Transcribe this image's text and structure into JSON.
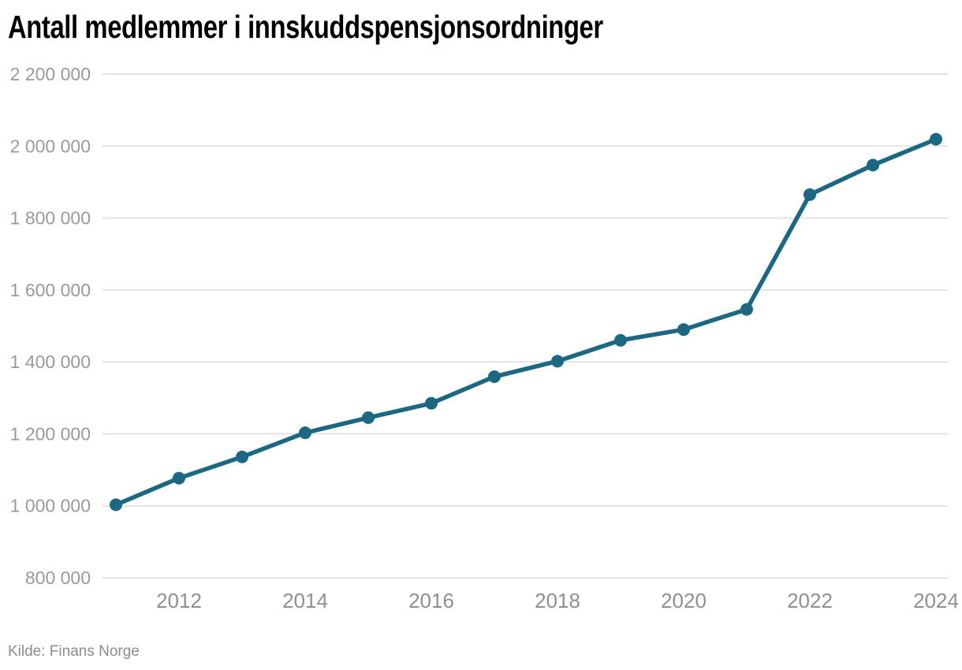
{
  "header": {
    "title": "Antall medlemmer i innskuddspensjonsordninger"
  },
  "footer": {
    "source": "Kilde: Finans Norge"
  },
  "chart_data": {
    "type": "line",
    "title": "Antall medlemmer i innskuddspensjonsordninger",
    "xlabel": "",
    "ylabel": "",
    "x": [
      2011,
      2012,
      2013,
      2014,
      2015,
      2016,
      2017,
      2018,
      2019,
      2020,
      2021,
      2022,
      2023,
      2024
    ],
    "series": [
      {
        "name": "Antall medlemmer",
        "values": [
          1003000,
          1077000,
          1136000,
          1203000,
          1245000,
          1285000,
          1359000,
          1402000,
          1460000,
          1490000,
          1546000,
          1865000,
          1947000,
          2019000
        ]
      }
    ],
    "xticks": [
      2012,
      2014,
      2016,
      2018,
      2020,
      2022,
      2024
    ],
    "ylim": [
      800000,
      2200000
    ],
    "ytick_step": 200000,
    "ytick_labels": [
      "800 000",
      "1 000 000",
      "1 200 000",
      "1 400 000",
      "1 600 000",
      "1 800 000",
      "2 000 000",
      "2 200 000"
    ],
    "grid": true,
    "legend_position": "none",
    "colors": {
      "line": "#1c6883",
      "marker": "#1c6883",
      "gridline": "#e4e4e4",
      "y_tick_label": "#9a9a9a",
      "x_tick_label": "#8f8f8f",
      "title": "#000000",
      "source": "#8c8c8c",
      "background": "#ffffff"
    }
  }
}
